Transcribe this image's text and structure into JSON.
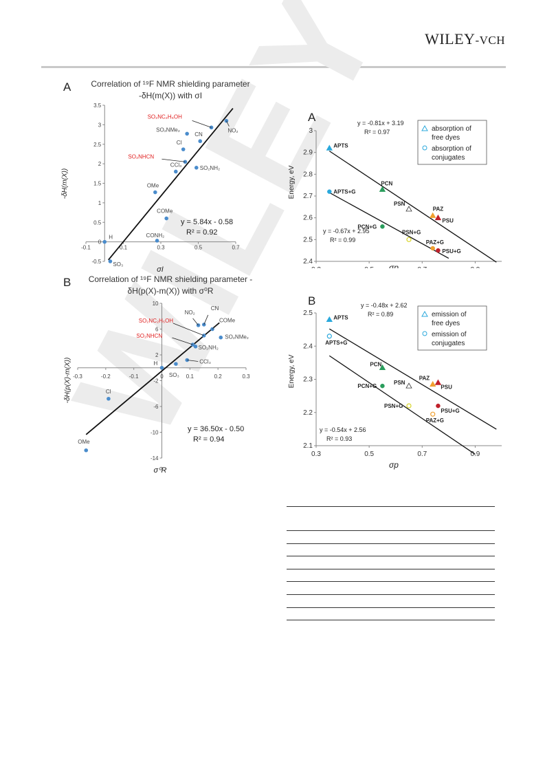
{
  "header": {
    "publisher_main": "WILEY",
    "publisher_sub": "-VCH"
  },
  "watermark": {
    "text": "WILEY"
  },
  "figures": [
    {
      "id": "left-A",
      "panel_letter": "A",
      "title_line1": "Correlation of ¹⁹F NMR shielding parameter",
      "title_line2": "-δH(m(X)) with σI",
      "chart_data": {
        "type": "scatter",
        "xlabel": "σI",
        "ylabel": "-δH(m(X))",
        "xlim": [
          -0.1,
          0.7
        ],
        "ylim": [
          -0.5,
          3.5
        ],
        "xticks": [
          "-0.1",
          "0.1",
          "0.3",
          "0.5",
          "0.7"
        ],
        "yticks": [
          "-0.5",
          "0",
          "0.5",
          "1",
          "1.5",
          "2",
          "2.5",
          "3",
          "3.5"
        ],
        "points": [
          {
            "label": "H",
            "x": 0.0,
            "y": 0.0
          },
          {
            "label": "SO3",
            "x": 0.03,
            "y": -0.5
          },
          {
            "label": "CONH2",
            "x": 0.28,
            "y": 0.03
          },
          {
            "label": "COMe",
            "x": 0.33,
            "y": 0.6
          },
          {
            "label": "OMe",
            "x": 0.27,
            "y": 1.27
          },
          {
            "label": "CCl3",
            "x": 0.38,
            "y": 1.8
          },
          {
            "label": "SO2NH2",
            "x": 0.49,
            "y": 1.9
          },
          {
            "label": "SO2NHCN",
            "x": 0.43,
            "y": 2.05
          },
          {
            "label": "Cl",
            "x": 0.42,
            "y": 2.37
          },
          {
            "label": "CN",
            "x": 0.51,
            "y": 2.58
          },
          {
            "label": "SO2NMe2",
            "x": 0.44,
            "y": 2.77
          },
          {
            "label": "SO2NC2H5OH",
            "x": 0.57,
            "y": 2.93
          },
          {
            "label": "NO2",
            "x": 0.65,
            "y": 3.1
          }
        ],
        "fit": {
          "slope": 5.84,
          "intercept": -0.58,
          "equation": "y = 5.84x - 0.58",
          "r2": "R² = 0.92"
        },
        "red_labels": [
          "SO₂NC₂H₅OH",
          "SO₂NHCN"
        ]
      }
    },
    {
      "id": "left-B",
      "panel_letter": "B",
      "title_line1": "Correlation of ¹⁹F NMR shielding parameter -",
      "title_line2": "δH(p(X)-m(X)) with σ⁰R",
      "chart_data": {
        "type": "scatter",
        "xlabel": "σ⁰R",
        "ylabel": "-δH(p(X)-m(X))",
        "xlim": [
          -0.3,
          0.3
        ],
        "ylim": [
          -14,
          10
        ],
        "xticks": [
          "-0.3",
          "-0.2",
          "-0.1",
          "0",
          "0.1",
          "0.2",
          "0.3"
        ],
        "yticks": [
          "10",
          "6",
          "2",
          "-2",
          "-6",
          "-10",
          "-14"
        ],
        "points": [
          {
            "label": "H",
            "x": 0.0,
            "y": 0.0
          },
          {
            "label": "SO3",
            "x": 0.05,
            "y": 0.6
          },
          {
            "label": "CCl3",
            "x": 0.09,
            "y": 1.2
          },
          {
            "label": "SO2NH2",
            "x": 0.12,
            "y": 3.3
          },
          {
            "label": "SO2NHCN",
            "x": 0.11,
            "y": 3.6
          },
          {
            "label": "SO2NC2H5OH",
            "x": 0.15,
            "y": 5.0
          },
          {
            "label": "NO2",
            "x": 0.13,
            "y": 6.6
          },
          {
            "label": "CN",
            "x": 0.15,
            "y": 6.7
          },
          {
            "label": "COMe",
            "x": 0.18,
            "y": 6.0
          },
          {
            "label": "SO2NMe2",
            "x": 0.21,
            "y": 4.7
          },
          {
            "label": "Cl",
            "x": -0.19,
            "y": -4.8
          },
          {
            "label": "OMe",
            "x": -0.27,
            "y": -12.8
          }
        ],
        "fit": {
          "slope": 36.5,
          "intercept": -0.5,
          "equation": "y = 36.50x - 0.50",
          "r2": "R² = 0.94"
        },
        "red_labels": [
          "SO₂NC₂H₅OH",
          "SO₂NHCN"
        ]
      }
    },
    {
      "id": "right-A",
      "panel_letter": "A",
      "chart_data": {
        "type": "scatter",
        "xlabel": "σp",
        "ylabel": "Energy, eV",
        "xlim": [
          0.3,
          1.0
        ],
        "ylim": [
          2.4,
          3.0
        ],
        "xticks": [
          "0.3",
          "0.5",
          "0.7",
          "0.9"
        ],
        "yticks": [
          "3",
          "2.9",
          "2.8",
          "2.7",
          "2.6",
          "2.5",
          "2.4"
        ],
        "legend": [
          "absorption of free dyes",
          "absorption of conjugates"
        ],
        "legend_placement": "top-right",
        "free_dyes": [
          {
            "label": "APTS",
            "x": 0.35,
            "y": 2.92,
            "color": "#2aa8dc"
          },
          {
            "label": "PCN",
            "x": 0.55,
            "y": 2.73,
            "color": "#2a9d5c"
          },
          {
            "label": "PSN",
            "x": 0.65,
            "y": 2.64,
            "color": "#d8d52a"
          },
          {
            "label": "PAZ",
            "x": 0.74,
            "y": 2.61,
            "color": "#f0a030"
          },
          {
            "label": "PSU",
            "x": 0.76,
            "y": 2.6,
            "color": "#c0202a"
          }
        ],
        "conjugates": [
          {
            "label": "APTS+G",
            "x": 0.35,
            "y": 2.72,
            "color": "#2aa8dc"
          },
          {
            "label": "PCN+G",
            "x": 0.55,
            "y": 2.56,
            "color": "#2a9d5c"
          },
          {
            "label": "PSN+G",
            "x": 0.65,
            "y": 2.5,
            "color": "#d8d52a"
          },
          {
            "label": "PAZ+G",
            "x": 0.74,
            "y": 2.46,
            "color": "#f0a030"
          },
          {
            "label": "PSU+G",
            "x": 0.76,
            "y": 2.45,
            "color": "#c0202a"
          }
        ],
        "fit_free": {
          "slope": -0.81,
          "intercept": 3.19,
          "equation": "y = -0.81x + 3.19",
          "r2": "R² = 0.97"
        },
        "fit_conj": {
          "slope": -0.67,
          "intercept": 2.95,
          "equation": "y = -0.67x + 2.95",
          "r2": "R² = 0.99"
        }
      }
    },
    {
      "id": "right-B",
      "panel_letter": "B",
      "chart_data": {
        "type": "scatter",
        "xlabel": "σp",
        "ylabel": "Energy, eV",
        "xlim": [
          0.3,
          1.0
        ],
        "ylim": [
          2.1,
          2.5
        ],
        "xticks": [
          "0.3",
          "0.5",
          "0.7",
          "0.9"
        ],
        "yticks": [
          "2.5",
          "2.4",
          "2.3",
          "2.2",
          "2.1"
        ],
        "legend": [
          "emission of free dyes",
          "emission of conjugates"
        ],
        "legend_placement": "top-right",
        "free_dyes": [
          {
            "label": "APTS",
            "x": 0.35,
            "y": 2.48,
            "color": "#2aa8dc"
          },
          {
            "label": "PCN",
            "x": 0.55,
            "y": 2.335,
            "color": "#2a9d5c"
          },
          {
            "label": "PSN",
            "x": 0.65,
            "y": 2.28,
            "color": "#d8d52a"
          },
          {
            "label": "PAZ",
            "x": 0.74,
            "y": 2.285,
            "color": "#f0a030"
          },
          {
            "label": "PSU",
            "x": 0.76,
            "y": 2.29,
            "color": "#c0202a"
          }
        ],
        "conjugates": [
          {
            "label": "APTS+G",
            "x": 0.35,
            "y": 2.43,
            "color": "#2aa8dc"
          },
          {
            "label": "PCN+G",
            "x": 0.55,
            "y": 2.28,
            "color": "#2a9d5c"
          },
          {
            "label": "PSN+G",
            "x": 0.65,
            "y": 2.22,
            "color": "#d8d52a"
          },
          {
            "label": "PAZ+G",
            "x": 0.74,
            "y": 2.195,
            "color": "#f0a030"
          },
          {
            "label": "PSU+G",
            "x": 0.76,
            "y": 2.22,
            "color": "#c0202a"
          }
        ],
        "fit_free": {
          "slope": -0.48,
          "intercept": 2.62,
          "equation": "y = -0.48x + 2.62",
          "r2": "R² = 0.89"
        },
        "fit_conj": {
          "slope": -0.54,
          "intercept": 2.56,
          "equation": "y = -0.54x + 2.56",
          "r2": "R² = 0.93"
        }
      }
    }
  ],
  "colors": {
    "point": "#4a8ccc",
    "red_label": "#e02020",
    "axis": "#888888",
    "line": "#111111"
  }
}
